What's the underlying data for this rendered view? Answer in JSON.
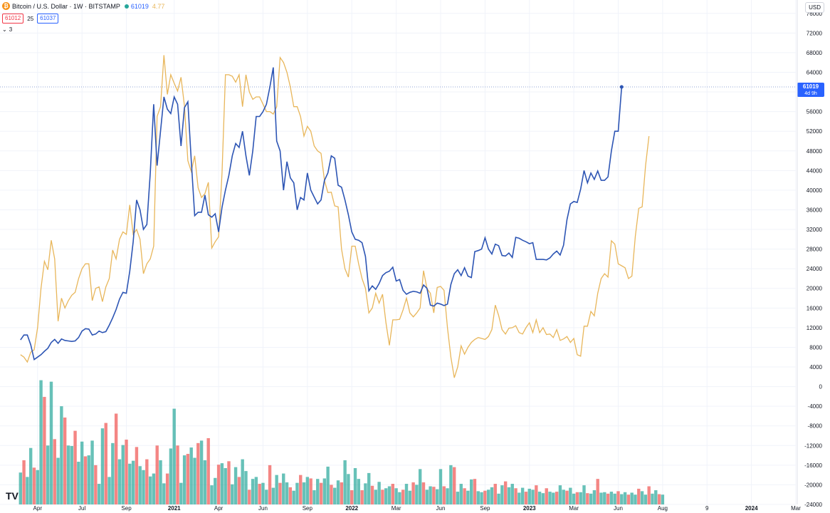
{
  "header": {
    "symbol": "Bitcoin / U.S. Dollar · 1W · BITSTAMP",
    "last_price": "61019",
    "change": "4.77",
    "compare_low": "61012",
    "compare_sep": "25",
    "compare_high": "61037",
    "indicator_count": "3",
    "currency": "USD",
    "logo": "TV"
  },
  "price_label": {
    "price": "61019",
    "countdown": "4d 9h"
  },
  "chart_data": [
    {
      "type": "line",
      "title": "Bitcoin / U.S. Dollar · 1W · BITSTAMP",
      "ylim": [
        -24000,
        78000
      ],
      "ytick_values": [
        76000,
        72000,
        68000,
        64000,
        60000,
        56000,
        52000,
        48000,
        44000,
        40000,
        36000,
        32000,
        28000,
        24000,
        20000,
        16000,
        12000,
        8000,
        4000,
        0,
        -4000,
        -8000,
        -12000,
        -16000,
        -20000,
        -24000
      ],
      "xtick_labels": [
        "Apr",
        "Jul",
        "Sep",
        "2021",
        "Apr",
        "Jun",
        "Sep",
        "2022",
        "Mar",
        "Jun",
        "Sep",
        "2023",
        "Mar",
        "Jun",
        "Aug",
        "9",
        "2024",
        "Mar"
      ],
      "xtick_positions": [
        5,
        18,
        31,
        45,
        58,
        71,
        84,
        97,
        110,
        123,
        136,
        149,
        162,
        175,
        188,
        201,
        214,
        227
      ],
      "xlim": [
        -6,
        227
      ],
      "grid": true,
      "series": [
        {
          "color": "#2d55b4",
          "values": [
            9500,
            10500,
            10500,
            8500,
            5500,
            6000,
            6500,
            7200,
            7800,
            9000,
            9600,
            8800,
            9700,
            9400,
            9300,
            9200,
            9300,
            10000,
            11300,
            11800,
            11700,
            10500,
            10700,
            11300,
            11000,
            11200,
            12500,
            14000,
            15700,
            17800,
            19200,
            19000,
            23500,
            29500,
            38000,
            36000,
            32000,
            33000,
            43500,
            57500,
            45000,
            52000,
            59000,
            56500,
            55600,
            59000,
            57500,
            49000,
            56800,
            58000,
            46000,
            34800,
            35500,
            35500,
            39000,
            35000,
            34500,
            35200,
            31500,
            36500,
            40000,
            43000,
            47000,
            49500,
            48700,
            52000,
            47000,
            43000,
            48000,
            55000,
            55000,
            56000,
            57500,
            61000,
            65000,
            50000,
            48000,
            40000,
            45800,
            42500,
            41500,
            36000,
            38500,
            38000,
            43500,
            40000,
            38600,
            37200,
            38000,
            42000,
            43500,
            47000,
            46500,
            41000,
            40600,
            38000,
            35000,
            31500,
            30000,
            29800,
            29300,
            26500,
            19500,
            20500,
            19800,
            21000,
            22600,
            23200,
            23500,
            24300,
            21500,
            21800,
            19600,
            18800,
            19200,
            19400,
            19300,
            19000,
            20700,
            20000,
            16600,
            16400,
            17000,
            16800,
            16500,
            16800,
            20800,
            23000,
            23800,
            22600,
            24200,
            22500,
            22200,
            27500,
            27700,
            28000,
            30300,
            28000,
            27000,
            29000,
            28700,
            26700,
            26600,
            27200,
            26300,
            30400,
            30200,
            29800,
            29500,
            29100,
            29300,
            25900,
            25900,
            25900,
            25800,
            26200,
            27000,
            27600,
            26800,
            28800,
            34000,
            37200,
            37700,
            37500,
            40200,
            44000,
            41500,
            43500,
            42200,
            43900,
            42000,
            42000,
            42700,
            48000,
            52000,
            52000,
            61019
          ]
        },
        {
          "color": "#e8b65a",
          "values": [
            6500,
            6000,
            5000,
            7000,
            7500,
            12000,
            20000,
            25500,
            23800,
            29800,
            26000,
            13300,
            18000,
            16000,
            17500,
            18600,
            19200,
            22000,
            24000,
            25000,
            25000,
            17500,
            20000,
            20300,
            17300,
            20300,
            22000,
            27800,
            26000,
            30000,
            31500,
            31000,
            37000,
            31000,
            32000,
            30000,
            23000,
            25000,
            26000,
            28600,
            55000,
            57000,
            67500,
            59500,
            63500,
            61800,
            60200,
            63000,
            57200,
            46000,
            43800,
            47000,
            40500,
            38500,
            39300,
            41600,
            28200,
            29500,
            30500,
            43500,
            63500,
            63500,
            63200,
            62000,
            63500,
            57000,
            63500,
            60000,
            58500,
            59000,
            59000,
            57500,
            56000,
            56000,
            55500,
            57000,
            67000,
            66000,
            64000,
            61000,
            57000,
            57000,
            55000,
            51000,
            53000,
            52000,
            49000,
            48000,
            47500,
            42000,
            39500,
            39600,
            36800,
            36600,
            28000,
            24000,
            22300,
            28600,
            28600,
            25000,
            22000,
            20000,
            15000,
            16000,
            19000,
            17000,
            18800,
            13000,
            8400,
            13600,
            13600,
            13700,
            15600,
            18000,
            15000,
            14200,
            15000,
            16000,
            23600,
            20000,
            19000,
            15000,
            20200,
            20400,
            19600,
            12000,
            6000,
            1800,
            4000,
            8300,
            6600,
            8000,
            9000,
            9600,
            10000,
            9800,
            9600,
            10200,
            11600,
            16600,
            14500,
            11600,
            10700,
            11900,
            12000,
            12400,
            11000,
            10700,
            12000,
            13000,
            11000,
            13600,
            11000,
            12000,
            10600,
            10700,
            10000,
            11600,
            9400,
            9700,
            10200,
            9000,
            9800,
            6500,
            6200,
            12300,
            12300,
            15300,
            14400,
            19000,
            22000,
            23000,
            22300,
            29700,
            29000,
            25000,
            24600,
            24200,
            22000,
            22500,
            30600,
            36300,
            36600,
            45000,
            51000
          ]
        },
        {
          "type": "bar",
          "name": "volume",
          "values": [
            -17500,
            -15000,
            -18400,
            -12500,
            -16500,
            -17000,
            1300,
            -2100,
            -12000,
            1000,
            -10700,
            -14500,
            -4000,
            -6300,
            -12000,
            -12100,
            -9000,
            -15300,
            -11200,
            -14200,
            -14000,
            -11000,
            -16000,
            -19800,
            -8500,
            -7400,
            -18400,
            -11500,
            -5500,
            -14800,
            -11900,
            -10800,
            -15700,
            -15100,
            -12300,
            -16200,
            -17000,
            -14800,
            -18300,
            -17700,
            -12000,
            -15000,
            -19700,
            -17700,
            -12600,
            -4500,
            -12000,
            -19600,
            -14000,
            -13700,
            -12400,
            -14500,
            -11500,
            -11000,
            -15000,
            -10500,
            -20100,
            -18600,
            -15900,
            -15600,
            -16600,
            -15200,
            -19900,
            -16400,
            -18400,
            -14800,
            -17200,
            -21000,
            -18800,
            -18400,
            -19800,
            -19600,
            -21000,
            -16000,
            -20600,
            -18000,
            -19600,
            -17700,
            -19500,
            -20500,
            -21200,
            -19600,
            -18000,
            -19500,
            -18400,
            -18700,
            -21100,
            -18800,
            -19600,
            -18700,
            -16300,
            -20000,
            -20600,
            -19100,
            -19500,
            -15000,
            -17800,
            -21100,
            -16600,
            -18800,
            -21100,
            -19700,
            -17600,
            -20200,
            -21000,
            -19400,
            -21000,
            -20700,
            -20300,
            -19800,
            -20700,
            -21500,
            -21000,
            -19800,
            -21200,
            -19500,
            -20000,
            -16800,
            -19500,
            -21000,
            -20300,
            -20400,
            -20900,
            -16800,
            -20300,
            -20700,
            -16000,
            -16400,
            -21400,
            -19800,
            -20700,
            -21200,
            -18900,
            -18800,
            -21300,
            -21500,
            -21200,
            -21000,
            -20500,
            -19800,
            -21800,
            -20100,
            -19300,
            -20500,
            -19800,
            -20700,
            -21600,
            -20600,
            -21400,
            -20800,
            -21000,
            -20100,
            -21400,
            -21700,
            -20700,
            -21400,
            -21600,
            -21400,
            -20100,
            -21000,
            -21200,
            -20600,
            -21800,
            -21500,
            -21500,
            -20100,
            -21700,
            -21800,
            -21100,
            -18800,
            -21600,
            -21500,
            -21800,
            -21400,
            -21800,
            -21300,
            -21900,
            -21500,
            -22000,
            -21600,
            -22000,
            -20800,
            -21300,
            -22000,
            -20300,
            -21800,
            -21100,
            -21900,
            -22000
          ]
        }
      ]
    }
  ]
}
